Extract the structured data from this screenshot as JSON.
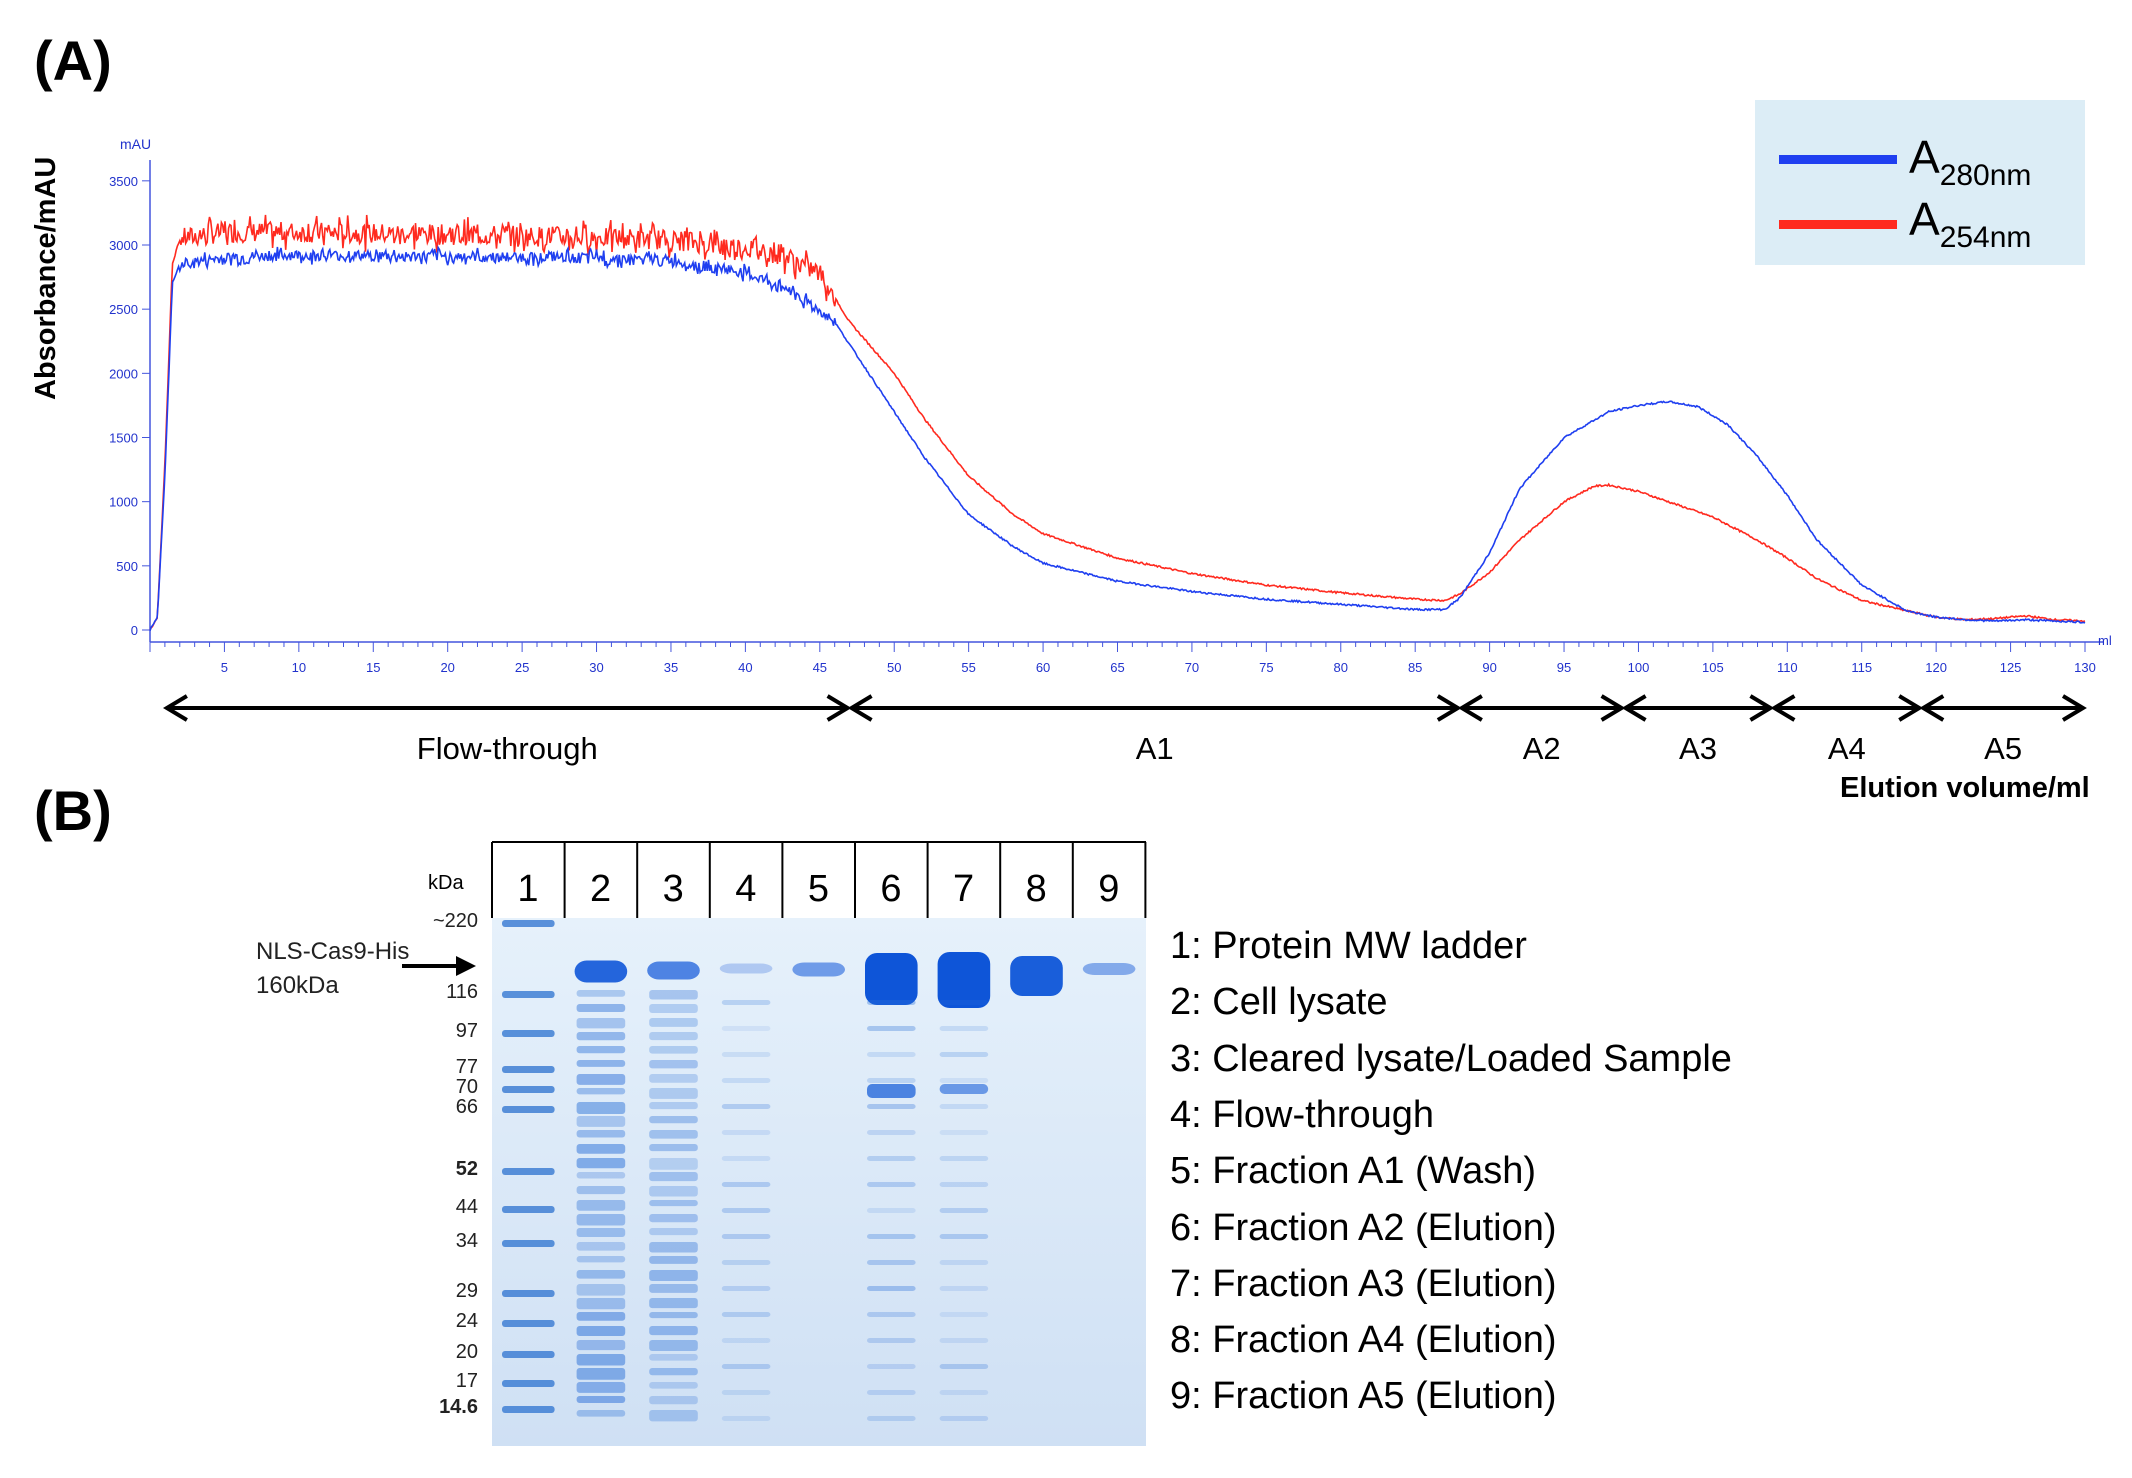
{
  "panel_a_label": "(A)",
  "panel_b_label": "(B)",
  "chart_data": {
    "type": "line",
    "xlabel": "Elution volume/ml",
    "ylabel": "Absorbance/mAU",
    "y_unit_label": "mAU",
    "x_unit_label": "ml",
    "xlim": [
      0,
      130
    ],
    "ylim": [
      0,
      3600
    ],
    "x_ticks": [
      5,
      10,
      15,
      20,
      25,
      30,
      35,
      40,
      45,
      50,
      55,
      60,
      65,
      70,
      75,
      80,
      85,
      90,
      95,
      100,
      105,
      110,
      115,
      120,
      125,
      130
    ],
    "y_ticks": [
      0,
      500,
      1000,
      1500,
      2000,
      2500,
      3000,
      3500
    ],
    "legend_placement": "top-right",
    "series": [
      {
        "name": "A280nm",
        "name_main": "A",
        "name_sub": "280nm",
        "color": "#1f3ff0",
        "x": [
          0,
          0.5,
          1,
          1.5,
          2,
          5,
          10,
          20,
          30,
          35,
          40,
          43,
          46,
          48,
          50,
          52,
          55,
          58,
          60,
          65,
          70,
          75,
          80,
          85,
          87,
          88,
          90,
          92,
          95,
          98,
          100,
          102,
          104,
          106,
          108,
          110,
          112,
          115,
          118,
          120,
          122,
          124,
          126,
          128,
          130
        ],
        "y": [
          0,
          100,
          1200,
          2700,
          2850,
          2900,
          2920,
          2910,
          2900,
          2880,
          2780,
          2650,
          2400,
          2050,
          1700,
          1350,
          900,
          650,
          520,
          380,
          300,
          240,
          200,
          160,
          160,
          250,
          600,
          1100,
          1500,
          1700,
          1750,
          1780,
          1740,
          1600,
          1350,
          1050,
          700,
          350,
          150,
          100,
          80,
          70,
          80,
          70,
          60
        ]
      },
      {
        "name": "A254nm",
        "name_main": "A",
        "name_sub": "254nm",
        "color": "#ff2a1f",
        "x": [
          0,
          0.5,
          1,
          1.5,
          2,
          5,
          10,
          20,
          30,
          35,
          40,
          42,
          45,
          47,
          50,
          52,
          55,
          58,
          60,
          65,
          70,
          75,
          80,
          85,
          87,
          88,
          90,
          92,
          95,
          97,
          98,
          100,
          102,
          105,
          108,
          110,
          112,
          115,
          118,
          120,
          122,
          124,
          126,
          128,
          130
        ],
        "y": [
          0,
          100,
          1300,
          2850,
          3050,
          3100,
          3100,
          3080,
          3060,
          3040,
          2980,
          2950,
          2780,
          2400,
          2000,
          1650,
          1200,
          900,
          750,
          560,
          440,
          350,
          290,
          240,
          230,
          280,
          450,
          700,
          1000,
          1120,
          1130,
          1080,
          1000,
          880,
          700,
          560,
          400,
          230,
          150,
          100,
          80,
          90,
          110,
          80,
          70
        ]
      }
    ],
    "fraction_ranges": [
      {
        "label": "Flow-through",
        "start": 1,
        "end": 47
      },
      {
        "label": "A1",
        "start": 47,
        "end": 88
      },
      {
        "label": "A2",
        "start": 88,
        "end": 99
      },
      {
        "label": "A3",
        "start": 99,
        "end": 109
      },
      {
        "label": "A4",
        "start": 109,
        "end": 119
      },
      {
        "label": "A5",
        "start": 119,
        "end": 130
      }
    ]
  },
  "gel": {
    "kda_label": "kDa",
    "lanes": [
      "1",
      "2",
      "3",
      "4",
      "5",
      "6",
      "7",
      "8",
      "9"
    ],
    "mw_markers": [
      {
        "label": "~220",
        "bold": false
      },
      {
        "label": "116",
        "bold": false
      },
      {
        "label": "97",
        "bold": false
      },
      {
        "label": "77",
        "bold": false
      },
      {
        "label": "70",
        "bold": false
      },
      {
        "label": "66",
        "bold": false
      },
      {
        "label": "52",
        "bold": true
      },
      {
        "label": "44",
        "bold": false
      },
      {
        "label": "34",
        "bold": false
      },
      {
        "label": "29",
        "bold": false
      },
      {
        "label": "24",
        "bold": false
      },
      {
        "label": "20",
        "bold": false
      },
      {
        "label": "17",
        "bold": false
      },
      {
        "label": "14.6",
        "bold": true
      }
    ],
    "target_label_line1": "NLS-Cas9-His",
    "target_label_line2": "160kDa",
    "lane_key": [
      "1: Protein MW ladder",
      "2: Cell lysate",
      "3: Cleared lysate/Loaded Sample",
      "4: Flow-through",
      "5: Fraction A1 (Wash)",
      "6: Fraction A2 (Elution)",
      "7: Fraction A3 (Elution)",
      "8: Fraction A4 (Elution)",
      "9: Fraction A5 (Elution)"
    ]
  }
}
